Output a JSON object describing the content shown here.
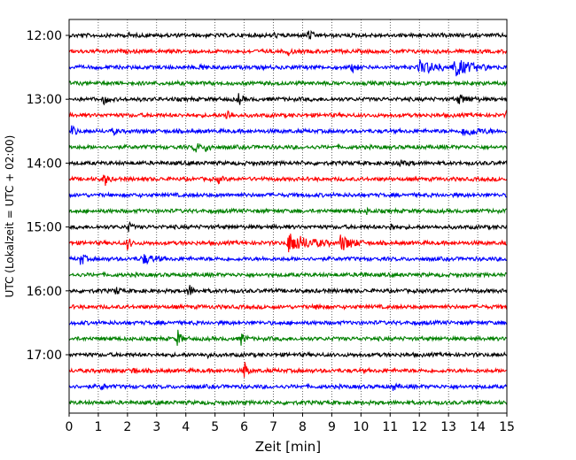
{
  "chart_data": {
    "type": "line",
    "subtype": "helicorder",
    "xlabel": "Zeit  [min]",
    "ylabel": "UTC (Lokalzeit = UTC + 02:00)",
    "xlim": [
      0,
      15
    ],
    "x_ticks": [
      0,
      1,
      2,
      3,
      4,
      5,
      6,
      7,
      8,
      9,
      10,
      11,
      12,
      13,
      14,
      15
    ],
    "y_tick_labels": [
      "12:00",
      "13:00",
      "14:00",
      "15:00",
      "16:00",
      "17:00"
    ],
    "grid": "vertical dotted lines at each minute",
    "trace_interval_minutes": 15,
    "trace_colors": [
      "#000000",
      "#ff0000",
      "#0000ff",
      "#008000"
    ],
    "traces": [
      {
        "label": "12:00",
        "color": "#000000",
        "events": [
          {
            "t": 2.0,
            "amp": 0.25
          },
          {
            "t": 7.0,
            "amp": 0.25
          },
          {
            "t": 8.2,
            "amp": 0.7
          }
        ]
      },
      {
        "label": "12:15",
        "color": "#ff0000",
        "events": [
          {
            "t": 7.5,
            "amp": 0.4
          }
        ]
      },
      {
        "label": "12:30",
        "color": "#0000ff",
        "events": [
          {
            "t": 4.5,
            "amp": 0.5
          },
          {
            "t": 9.7,
            "amp": 0.6
          },
          {
            "t": 12.0,
            "amp": 0.8,
            "dur": 1.4
          },
          {
            "t": 13.2,
            "amp": 1.0,
            "dur": 1.3
          }
        ]
      },
      {
        "label": "12:45",
        "color": "#008000",
        "events": []
      },
      {
        "label": "13:00",
        "color": "#000000",
        "events": [
          {
            "t": 1.2,
            "amp": 0.6
          },
          {
            "t": 5.8,
            "amp": 0.7
          },
          {
            "t": 13.3,
            "amp": 0.5,
            "dur": 0.8
          }
        ]
      },
      {
        "label": "13:15",
        "color": "#ff0000",
        "events": [
          {
            "t": 5.4,
            "amp": 0.9
          },
          {
            "t": 15.0,
            "amp": 0.5
          }
        ]
      },
      {
        "label": "13:30",
        "color": "#0000ff",
        "events": [
          {
            "t": 0.1,
            "amp": 0.8
          },
          {
            "t": 1.5,
            "amp": 0.4
          },
          {
            "t": 13.5,
            "amp": 0.5,
            "dur": 1.2
          }
        ]
      },
      {
        "label": "13:45",
        "color": "#008000",
        "events": [
          {
            "t": 4.3,
            "amp": 0.9
          },
          {
            "t": 4.7,
            "amp": 0.8
          }
        ]
      },
      {
        "label": "14:00",
        "color": "#000000",
        "events": [
          {
            "t": 11.2,
            "amp": 0.3,
            "dur": 0.8
          }
        ]
      },
      {
        "label": "14:15",
        "color": "#ff0000",
        "events": [
          {
            "t": 1.2,
            "amp": 1.0
          },
          {
            "t": 5.1,
            "amp": 0.4
          }
        ]
      },
      {
        "label": "14:30",
        "color": "#0000ff",
        "events": []
      },
      {
        "label": "14:45",
        "color": "#008000",
        "events": [
          {
            "t": 10.2,
            "amp": 0.3
          }
        ]
      },
      {
        "label": "15:00",
        "color": "#000000",
        "events": [
          {
            "t": 2.0,
            "amp": 0.7
          },
          {
            "t": 11.0,
            "amp": 0.5
          }
        ]
      },
      {
        "label": "15:15",
        "color": "#ff0000",
        "events": [
          {
            "t": 2.0,
            "amp": 0.8
          },
          {
            "t": 7.5,
            "amp": 1.2,
            "dur": 1.5
          },
          {
            "t": 9.3,
            "amp": 1.0,
            "dur": 0.8
          },
          {
            "t": 15.0,
            "amp": 0.4
          }
        ]
      },
      {
        "label": "15:30",
        "color": "#0000ff",
        "events": [
          {
            "t": 0.4,
            "amp": 0.9
          },
          {
            "t": 2.5,
            "amp": 0.6,
            "dur": 0.8
          }
        ]
      },
      {
        "label": "15:45",
        "color": "#008000",
        "events": [
          {
            "t": 10.0,
            "amp": 0.3
          }
        ]
      },
      {
        "label": "16:00",
        "color": "#000000",
        "events": [
          {
            "t": 1.6,
            "amp": 0.5
          },
          {
            "t": 4.1,
            "amp": 0.9
          }
        ]
      },
      {
        "label": "16:15",
        "color": "#ff0000",
        "events": [
          {
            "t": 8.5,
            "amp": 0.5
          }
        ]
      },
      {
        "label": "16:30",
        "color": "#0000ff",
        "events": []
      },
      {
        "label": "16:45",
        "color": "#008000",
        "events": [
          {
            "t": 3.7,
            "amp": 1.2
          },
          {
            "t": 5.9,
            "amp": 0.8
          }
        ]
      },
      {
        "label": "17:00",
        "color": "#000000",
        "events": [
          {
            "t": 4.7,
            "amp": 0.3
          }
        ]
      },
      {
        "label": "17:15",
        "color": "#ff0000",
        "events": [
          {
            "t": 2.1,
            "amp": 0.7
          },
          {
            "t": 6.0,
            "amp": 1.2
          }
        ]
      },
      {
        "label": "17:30",
        "color": "#0000ff",
        "events": [
          {
            "t": 1.1,
            "amp": 0.4
          },
          {
            "t": 11.1,
            "amp": 0.4
          }
        ]
      },
      {
        "label": "17:45",
        "color": "#008000",
        "events": []
      }
    ]
  }
}
